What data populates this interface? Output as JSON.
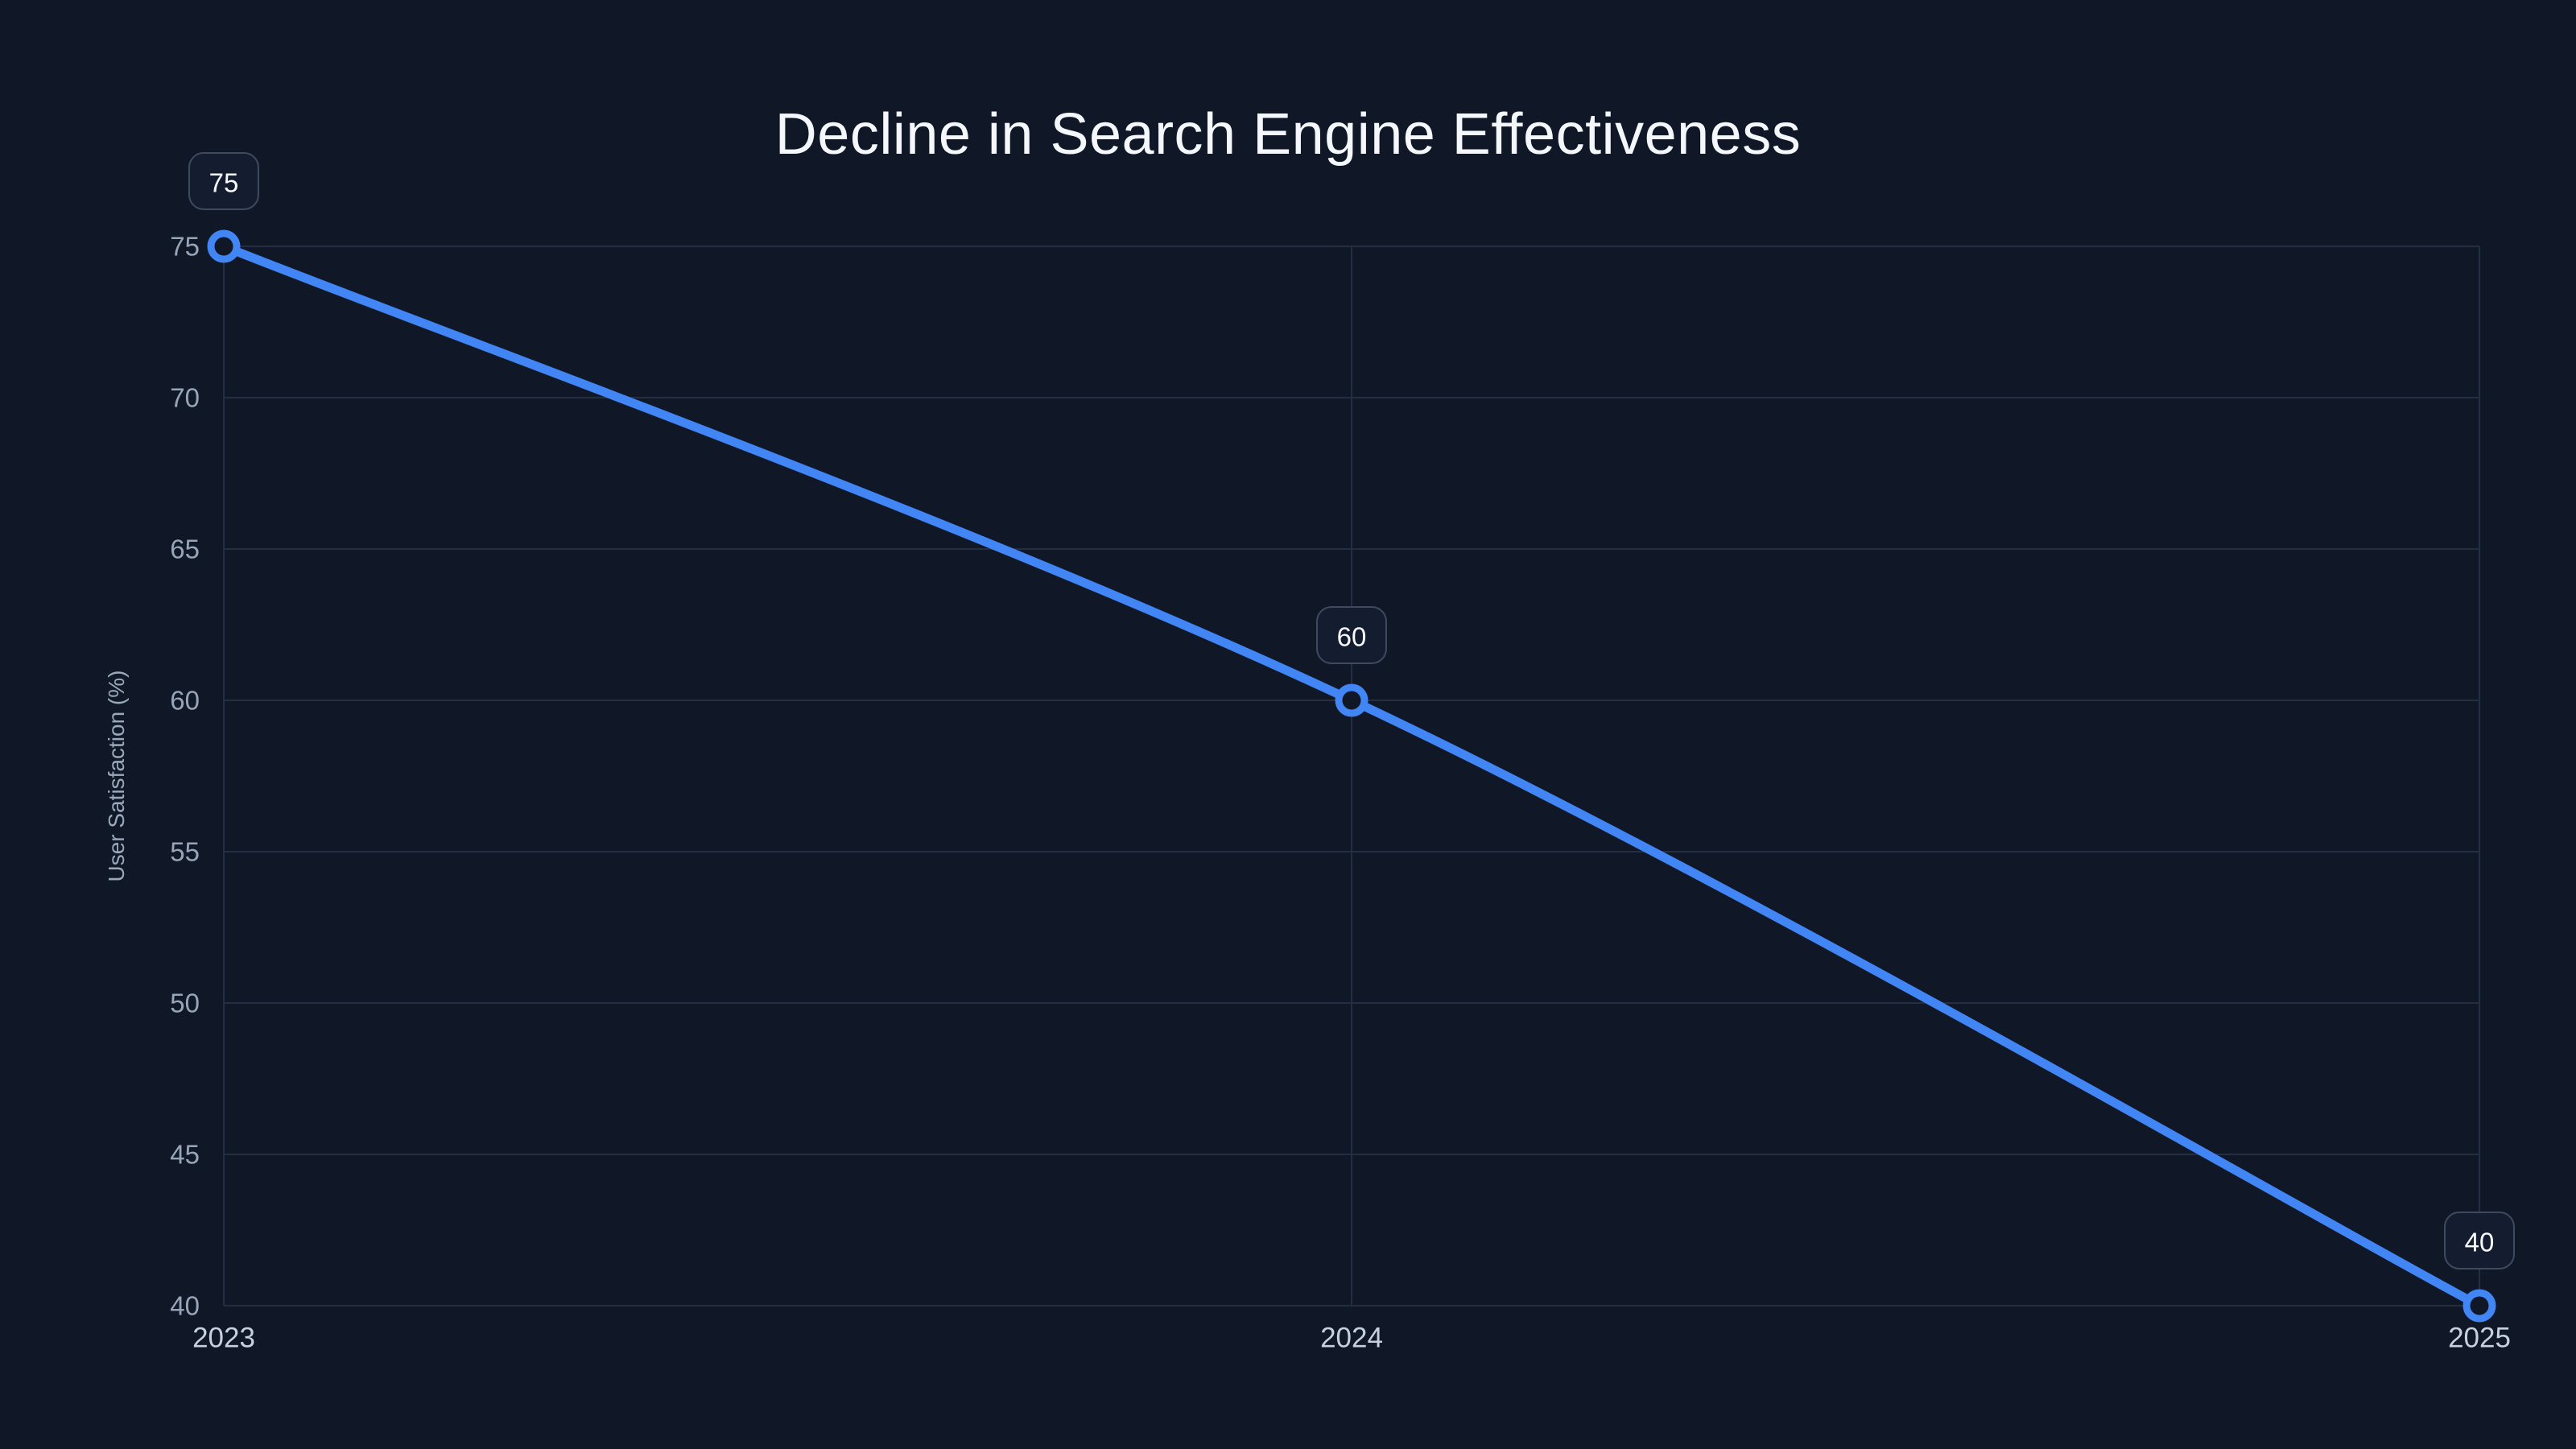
{
  "chart_data": {
    "type": "line",
    "title": "Decline in Search Engine Effectiveness",
    "x": [
      "2023",
      "2024",
      "2025"
    ],
    "series": [
      {
        "name": "User Satisfaction (%)",
        "values": [
          75,
          60,
          40
        ]
      }
    ],
    "point_labels": [
      "75",
      "60",
      "40"
    ],
    "xlabel": "",
    "ylabel": "User Satisfaction (%)",
    "ylim": [
      40,
      75
    ],
    "yticks": [
      40,
      45,
      50,
      55,
      60,
      65,
      70,
      75
    ],
    "grid": true,
    "smooth": true,
    "legend_position": "none",
    "theme": {
      "background": "#101827",
      "grid_line": "#242e42",
      "series_line": "#4285f4",
      "marker_fill": "#101827",
      "marker_stroke": "#4285f4",
      "y_tick_color": "#97a5b9",
      "x_tick_color": "#c6d0de",
      "badge_fill": "#141c30",
      "badge_border": "#3e4a5e",
      "badge_text": "#f8fafc",
      "title_color": "#f4f7fb",
      "axis_title_color": "#9aa8bc"
    }
  }
}
